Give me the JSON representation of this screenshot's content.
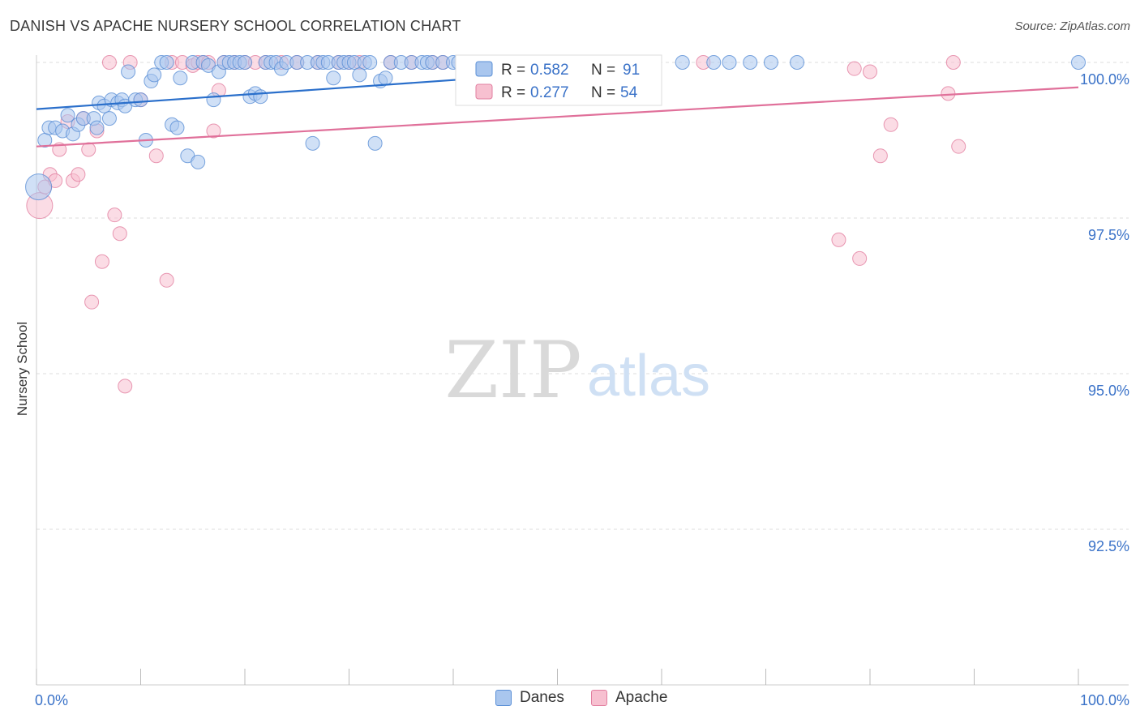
{
  "title": "DANISH VS APACHE NURSERY SCHOOL CORRELATION CHART",
  "source": "Source: ZipAtlas.com",
  "watermark": {
    "zip": "ZIP",
    "atlas": "atlas"
  },
  "colors": {
    "danes_fill": "#a9c6ee",
    "danes_stroke": "#5a8fd6",
    "danes_line": "#2a6fcb",
    "apache_fill": "#f7c0d0",
    "apache_stroke": "#e27fa0",
    "apache_line": "#e0709a",
    "value_text": "#3a72c8",
    "grid": "#dddddd"
  },
  "legend": {
    "rows": [
      {
        "r_label": "R = ",
        "r_value": "0.582",
        "n_label": "N = ",
        "n_value": "91"
      },
      {
        "r_label": "R = ",
        "r_value": "0.277",
        "n_label": "N = ",
        "n_value": "54"
      }
    ]
  },
  "chart_data": {
    "type": "scatter",
    "title": "DANISH VS APACHE NURSERY SCHOOL CORRELATION CHART",
    "xlabel": "",
    "ylabel": "Nursery School",
    "xlim": [
      0,
      100
    ],
    "ylim": [
      90.2,
      100.4
    ],
    "x_tick_labels": [
      "0.0%",
      "100.0%"
    ],
    "y_ticks": [
      {
        "value": 100.0,
        "label": "100.0%"
      },
      {
        "value": 97.5,
        "label": "97.5%"
      },
      {
        "value": 95.0,
        "label": "95.0%"
      },
      {
        "value": 92.5,
        "label": "92.5%"
      }
    ],
    "grid": true,
    "legend_position": "top-center",
    "series": [
      {
        "name": "Danes",
        "r": 0.582,
        "n": 91,
        "trend": {
          "x": [
            0,
            60
          ],
          "y": [
            99.25,
            99.95
          ]
        },
        "points": [
          [
            0.2,
            98.0
          ],
          [
            0.8,
            98.75
          ],
          [
            1.2,
            98.95
          ],
          [
            1.8,
            98.95
          ],
          [
            2.5,
            98.9
          ],
          [
            3.0,
            99.15
          ],
          [
            3.5,
            98.85
          ],
          [
            4.0,
            99.0
          ],
          [
            4.5,
            99.1
          ],
          [
            5.5,
            99.1
          ],
          [
            5.8,
            98.95
          ],
          [
            6.0,
            99.35
          ],
          [
            6.5,
            99.3
          ],
          [
            7.0,
            99.1
          ],
          [
            7.2,
            99.4
          ],
          [
            7.8,
            99.35
          ],
          [
            8.2,
            99.4
          ],
          [
            8.5,
            99.3
          ],
          [
            8.8,
            99.85
          ],
          [
            9.5,
            99.4
          ],
          [
            10.0,
            99.4
          ],
          [
            10.5,
            98.75
          ],
          [
            11.0,
            99.7
          ],
          [
            11.3,
            99.8
          ],
          [
            12.0,
            100.0
          ],
          [
            12.5,
            100.0
          ],
          [
            13.0,
            99.0
          ],
          [
            13.5,
            98.95
          ],
          [
            13.8,
            99.75
          ],
          [
            14.5,
            98.5
          ],
          [
            15.0,
            100.0
          ],
          [
            15.5,
            98.4
          ],
          [
            16.0,
            100.0
          ],
          [
            16.5,
            99.95
          ],
          [
            17.0,
            99.4
          ],
          [
            17.5,
            99.85
          ],
          [
            18.0,
            100.0
          ],
          [
            18.5,
            100.0
          ],
          [
            19.0,
            100.0
          ],
          [
            19.5,
            100.0
          ],
          [
            20.0,
            100.0
          ],
          [
            20.5,
            99.45
          ],
          [
            21.0,
            99.5
          ],
          [
            21.5,
            99.45
          ],
          [
            22.0,
            100.0
          ],
          [
            22.5,
            100.0
          ],
          [
            23.0,
            100.0
          ],
          [
            23.5,
            99.9
          ],
          [
            24.0,
            100.0
          ],
          [
            25.0,
            100.0
          ],
          [
            26.0,
            100.0
          ],
          [
            26.5,
            98.7
          ],
          [
            27.0,
            100.0
          ],
          [
            27.5,
            100.0
          ],
          [
            28.0,
            100.0
          ],
          [
            28.5,
            99.75
          ],
          [
            29.0,
            100.0
          ],
          [
            29.5,
            100.0
          ],
          [
            30.0,
            100.0
          ],
          [
            30.5,
            100.0
          ],
          [
            31.0,
            99.8
          ],
          [
            31.5,
            100.0
          ],
          [
            32.0,
            100.0
          ],
          [
            32.5,
            98.7
          ],
          [
            33.0,
            99.7
          ],
          [
            33.5,
            99.75
          ],
          [
            34.0,
            100.0
          ],
          [
            35.0,
            100.0
          ],
          [
            36.0,
            100.0
          ],
          [
            37.0,
            100.0
          ],
          [
            37.5,
            100.0
          ],
          [
            38.0,
            100.0
          ],
          [
            39.0,
            100.0
          ],
          [
            40.0,
            100.0
          ],
          [
            40.5,
            100.0
          ],
          [
            41.0,
            100.0
          ],
          [
            42.0,
            100.0
          ],
          [
            43.0,
            100.0
          ],
          [
            44.0,
            100.0
          ],
          [
            45.0,
            100.0
          ],
          [
            48.0,
            100.0
          ],
          [
            50.0,
            100.0
          ],
          [
            54.0,
            100.0
          ],
          [
            58.0,
            100.0
          ],
          [
            62.0,
            100.0
          ],
          [
            65.0,
            100.0
          ],
          [
            66.5,
            100.0
          ],
          [
            68.5,
            100.0
          ],
          [
            70.5,
            100.0
          ],
          [
            73.0,
            100.0
          ],
          [
            100.0,
            100.0
          ]
        ]
      },
      {
        "name": "Apache",
        "r": 0.277,
        "n": 54,
        "trend": {
          "x": [
            0,
            100
          ],
          "y": [
            98.65,
            99.6
          ]
        },
        "points": [
          [
            0.3,
            97.7
          ],
          [
            0.8,
            98.0
          ],
          [
            1.3,
            98.2
          ],
          [
            1.8,
            98.1
          ],
          [
            2.2,
            98.6
          ],
          [
            3.0,
            99.05
          ],
          [
            3.5,
            98.1
          ],
          [
            4.0,
            98.2
          ],
          [
            4.5,
            99.1
          ],
          [
            5.0,
            98.6
          ],
          [
            5.3,
            96.15
          ],
          [
            5.8,
            98.9
          ],
          [
            6.3,
            96.8
          ],
          [
            7.0,
            100.0
          ],
          [
            7.5,
            97.55
          ],
          [
            8.0,
            97.25
          ],
          [
            8.5,
            94.8
          ],
          [
            9.0,
            100.0
          ],
          [
            10.0,
            99.4
          ],
          [
            11.5,
            98.5
          ],
          [
            12.5,
            96.5
          ],
          [
            13.0,
            100.0
          ],
          [
            14.0,
            100.0
          ],
          [
            15.0,
            99.95
          ],
          [
            15.5,
            100.0
          ],
          [
            16.0,
            100.0
          ],
          [
            16.5,
            100.0
          ],
          [
            17.0,
            98.9
          ],
          [
            17.5,
            99.55
          ],
          [
            18.0,
            100.0
          ],
          [
            19.0,
            100.0
          ],
          [
            20.0,
            100.0
          ],
          [
            21.0,
            100.0
          ],
          [
            22.0,
            100.0
          ],
          [
            23.5,
            100.0
          ],
          [
            25.0,
            100.0
          ],
          [
            27.0,
            100.0
          ],
          [
            29.0,
            100.0
          ],
          [
            30.0,
            100.0
          ],
          [
            31.0,
            100.0
          ],
          [
            34.0,
            100.0
          ],
          [
            36.0,
            100.0
          ],
          [
            38.0,
            100.0
          ],
          [
            39.0,
            100.0
          ],
          [
            64.0,
            100.0
          ],
          [
            77.0,
            97.15
          ],
          [
            78.5,
            99.9
          ],
          [
            79.0,
            96.85
          ],
          [
            80.0,
            99.85
          ],
          [
            81.0,
            98.5
          ],
          [
            82.0,
            99.0
          ],
          [
            87.5,
            99.5
          ],
          [
            88.0,
            100.0
          ],
          [
            88.5,
            98.65
          ]
        ]
      }
    ]
  }
}
